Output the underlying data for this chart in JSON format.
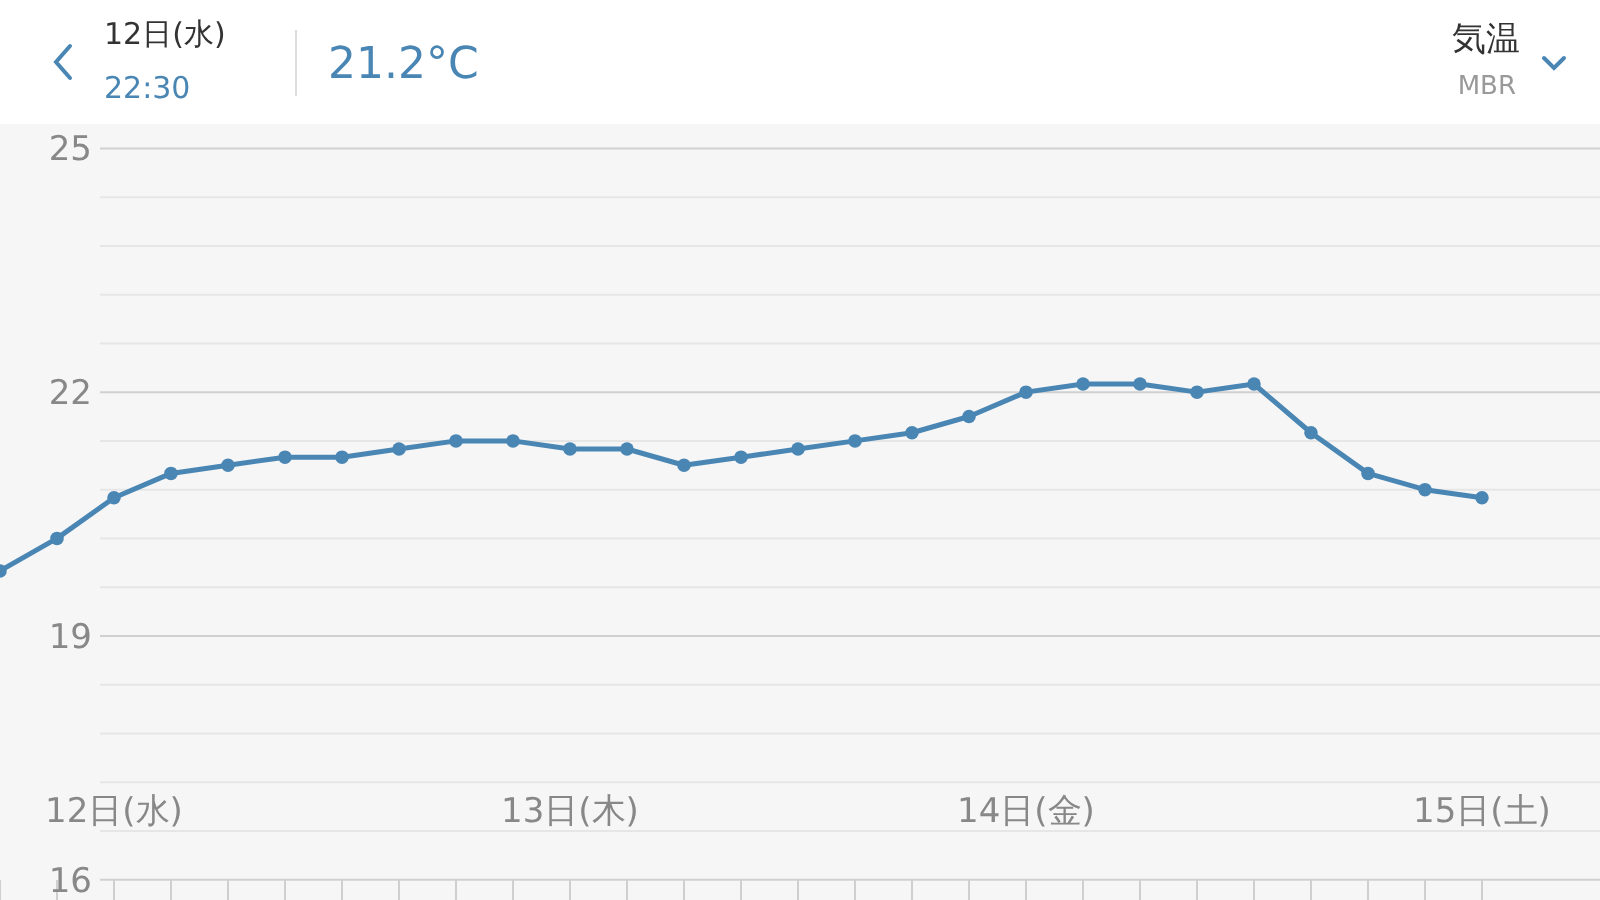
{
  "chart_data": {
    "type": "line",
    "title": "気温",
    "subtitle": "MBR",
    "annotations": [
      "12日(水)",
      "22:30",
      "21.2°C"
    ],
    "categories": [
      null,
      null,
      "12日(水)",
      null,
      null,
      null,
      null,
      null,
      null,
      null,
      "13日(木)",
      null,
      null,
      null,
      null,
      null,
      null,
      null,
      "14日(金)",
      null,
      null,
      null,
      null,
      null,
      null,
      null,
      "15日(土)"
    ],
    "series": [
      {
        "color": "#4a86b4",
        "values": [
          19.8,
          20.2,
          20.7,
          21.0,
          21.1,
          21.2,
          21.2,
          21.3,
          21.4,
          21.4,
          21.3,
          21.3,
          21.1,
          21.2,
          21.3,
          21.4,
          21.5,
          21.7,
          22.0,
          22.1,
          22.1,
          22.0,
          22.1,
          21.5,
          21.0,
          20.8,
          20.7
        ]
      }
    ],
    "ylim": [
      15.75,
      25.3
    ],
    "yticks": [
      16,
      {
        "value": 16.6,
        "label": null
      },
      {
        "value": 17.2,
        "label": null
      },
      {
        "value": 17.8,
        "label": null
      },
      {
        "value": 18.4,
        "label": null
      },
      19,
      {
        "value": 19.6,
        "label": null
      },
      {
        "value": 20.2,
        "label": null
      },
      {
        "value": 20.8,
        "label": null
      },
      {
        "value": 21.4,
        "label": null
      },
      22,
      {
        "value": 22.6,
        "label": null
      },
      {
        "value": 23.2,
        "label": null
      },
      {
        "value": 23.8,
        "label": null
      },
      {
        "value": 24.4,
        "label": null
      },
      25
    ],
    "grid": "y",
    "marker": "circle",
    "line_style": "solid"
  }
}
